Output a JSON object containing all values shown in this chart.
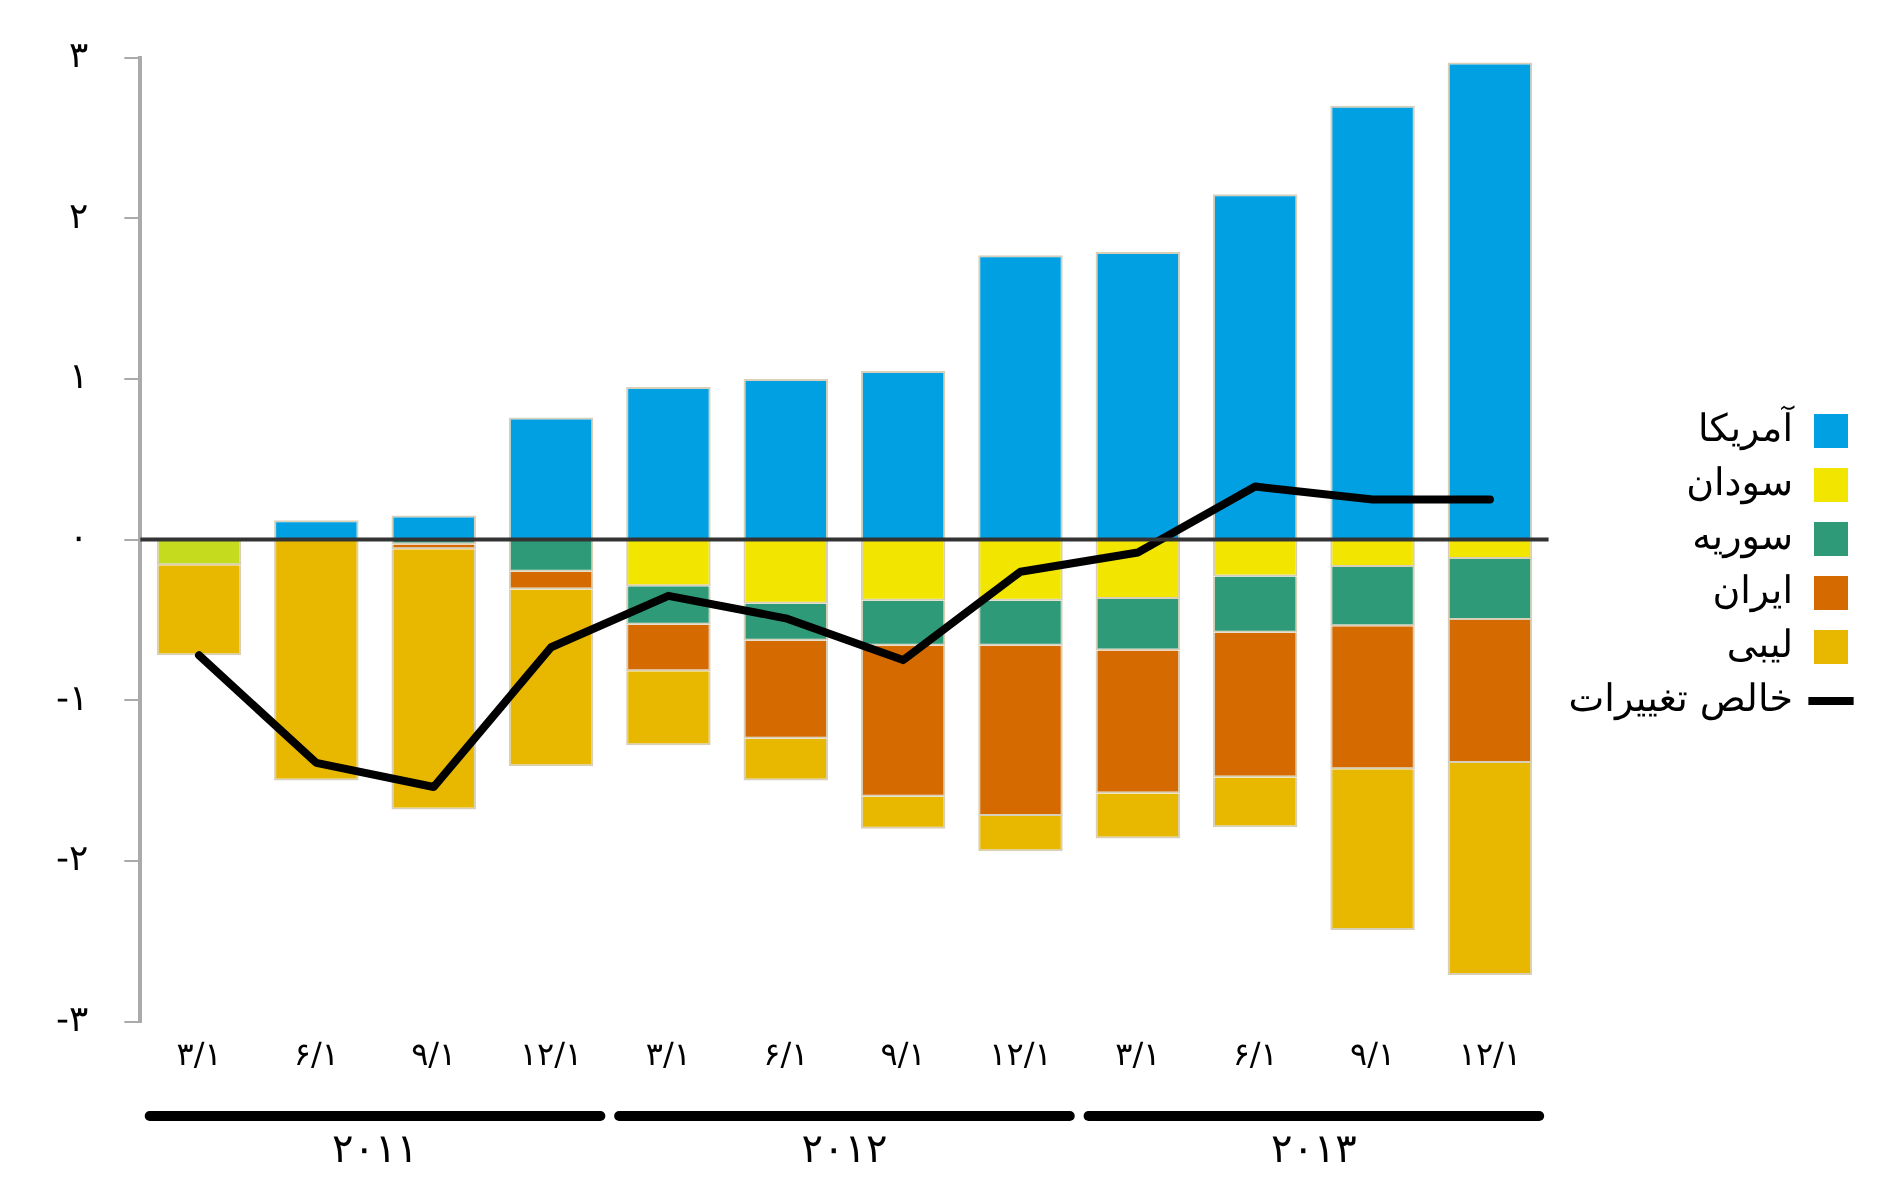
{
  "chart_data": {
    "type": "bar",
    "stacked": true,
    "categories": [
      "۳/۱",
      "۶/۱",
      "۹/۱",
      "۱۲/۱",
      "۳/۱",
      "۶/۱",
      "۹/۱",
      "۱۲/۱",
      "۳/۱",
      "۶/۱",
      "۹/۱",
      "۱۲/۱"
    ],
    "annotations": [
      "۲۰۱۱",
      "۲۰۱۲",
      "۲۰۱۳"
    ],
    "series": [
      {
        "name": "آمریکا",
        "color": "#00a0e3",
        "values": [
          0,
          0.12,
          0.15,
          0.76,
          0.95,
          1.0,
          1.05,
          1.77,
          1.79,
          2.15,
          2.7,
          2.97
        ]
      },
      {
        "name": "سودان",
        "color": "#f2e600",
        "colors": [
          "#c5dc1e",
          "#f2e600",
          "#f2e600",
          "#f2e600",
          "#f2e600",
          "#f2e600",
          "#f2e600",
          "#f2e600",
          "#f2e600",
          "#f2e600",
          "#f2e600",
          "#f2e600"
        ],
        "values": [
          -0.16,
          0,
          0,
          0,
          -0.29,
          -0.4,
          -0.38,
          -0.38,
          -0.37,
          -0.23,
          -0.17,
          -0.12
        ]
      },
      {
        "name": "سوریه",
        "color": "#2e9a78",
        "values": [
          0,
          0,
          -0.03,
          -0.2,
          -0.24,
          -0.23,
          -0.28,
          -0.28,
          -0.32,
          -0.35,
          -0.37,
          -0.38
        ]
      },
      {
        "name": "ایران",
        "color": "#d46a00",
        "values": [
          0,
          0,
          -0.03,
          -0.11,
          -0.29,
          -0.61,
          -0.94,
          -1.06,
          -0.89,
          -0.9,
          -0.89,
          -0.89
        ]
      },
      {
        "name": "لیبی",
        "color": "#e8b800",
        "values": [
          -0.56,
          -1.5,
          -1.62,
          -1.1,
          -0.46,
          -0.26,
          -0.2,
          -0.22,
          -0.28,
          -0.31,
          -1.0,
          -1.32
        ]
      },
      {
        "name": "خالص تغییرات",
        "type": "line",
        "color": "#000000",
        "values": [
          -0.72,
          -1.39,
          -1.54,
          -0.67,
          -0.35,
          -0.49,
          -0.75,
          -0.2,
          -0.08,
          0.33,
          0.25,
          0.25
        ]
      }
    ],
    "ylim": [
      -3,
      3
    ],
    "yticks": [
      {
        "value": -3,
        "label": "-۳"
      },
      {
        "value": -2,
        "label": "-۲"
      },
      {
        "value": -1,
        "label": "-۱"
      },
      {
        "value": 0,
        "label": "۰"
      },
      {
        "value": 1,
        "label": "۱"
      },
      {
        "value": 2,
        "label": "۲"
      },
      {
        "value": 3,
        "label": "۳"
      }
    ],
    "ref_lines": [
      {
        "axis": "y",
        "value": 0,
        "color": "#333333"
      }
    ],
    "grid": false,
    "legend": "right",
    "marker": "none"
  }
}
